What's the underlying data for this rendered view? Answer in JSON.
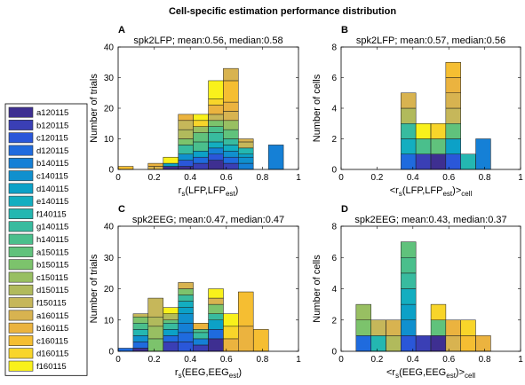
{
  "figure": {
    "title": "Cell-specific estimation performance distribution"
  },
  "legend": {
    "entries": [
      {
        "label": "a120115",
        "color": "#3E2F91"
      },
      {
        "label": "b120115",
        "color": "#3A3FB5"
      },
      {
        "label": "c120115",
        "color": "#2A57D9"
      },
      {
        "label": "d120115",
        "color": "#1F6BDE"
      },
      {
        "label": "b140115",
        "color": "#1580D6"
      },
      {
        "label": "c140115",
        "color": "#1090CE"
      },
      {
        "label": "d140115",
        "color": "#0CA1C7"
      },
      {
        "label": "e140115",
        "color": "#13AEC0"
      },
      {
        "label": "f140115",
        "color": "#24B7B1"
      },
      {
        "label": "g140115",
        "color": "#38BB9F"
      },
      {
        "label": "h140115",
        "color": "#4ABF8C"
      },
      {
        "label": "a150115",
        "color": "#60C27C"
      },
      {
        "label": "b150115",
        "color": "#7CC36C"
      },
      {
        "label": "c150115",
        "color": "#98BF62"
      },
      {
        "label": "d150115",
        "color": "#B1BA5C"
      },
      {
        "label": "f150115",
        "color": "#C6B75A"
      },
      {
        "label": "a160115",
        "color": "#D8B350"
      },
      {
        "label": "b160115",
        "color": "#EBB33F"
      },
      {
        "label": "c160115",
        "color": "#F5BE32"
      },
      {
        "label": "d160115",
        "color": "#F8D52A"
      },
      {
        "label": "f160115",
        "color": "#F9F11B"
      }
    ]
  },
  "chart_data": [
    {
      "type": "bar",
      "panel_letter": "A",
      "title": "spk2LFP; mean:0.56, median:0.58",
      "ylabel": "Number of trials",
      "xlabel": "r_s(LFP,LFP_est)",
      "xlim": [
        0,
        1
      ],
      "ylim": [
        0,
        40
      ],
      "xticks": [
        0,
        0.2,
        0.4,
        0.6,
        0.8,
        1
      ],
      "yticks": [
        0,
        10,
        20,
        30,
        40
      ],
      "bin_width": 0.0833,
      "bar_totals": [
        {
          "x": 0.042,
          "value": 1
        },
        {
          "x": 0.208,
          "value": 2
        },
        {
          "x": 0.292,
          "value": 4
        },
        {
          "x": 0.375,
          "value": 18
        },
        {
          "x": 0.458,
          "value": 18
        },
        {
          "x": 0.542,
          "value": 29
        },
        {
          "x": 0.625,
          "value": 33
        },
        {
          "x": 0.708,
          "value": 10
        },
        {
          "x": 0.875,
          "value": 8
        }
      ],
      "segments": [
        {
          "x": 0.042,
          "c": 18,
          "y0": 0,
          "y1": 1
        },
        {
          "x": 0.208,
          "c": 16,
          "y0": 0,
          "y1": 1
        },
        {
          "x": 0.208,
          "c": 17,
          "y0": 1,
          "y1": 2
        },
        {
          "x": 0.292,
          "c": 0,
          "y0": 0,
          "y1": 1
        },
        {
          "x": 0.292,
          "c": 6,
          "y0": 1,
          "y1": 2
        },
        {
          "x": 0.292,
          "c": 20,
          "y0": 2,
          "y1": 4
        },
        {
          "x": 0.375,
          "c": 0,
          "y0": 0,
          "y1": 1
        },
        {
          "x": 0.375,
          "c": 2,
          "y0": 1,
          "y1": 3
        },
        {
          "x": 0.375,
          "c": 5,
          "y0": 3,
          "y1": 5
        },
        {
          "x": 0.375,
          "c": 9,
          "y0": 5,
          "y1": 8
        },
        {
          "x": 0.375,
          "c": 12,
          "y0": 8,
          "y1": 10
        },
        {
          "x": 0.375,
          "c": 14,
          "y0": 10,
          "y1": 13
        },
        {
          "x": 0.375,
          "c": 15,
          "y0": 13,
          "y1": 16
        },
        {
          "x": 0.375,
          "c": 17,
          "y0": 16,
          "y1": 18
        },
        {
          "x": 0.458,
          "c": 1,
          "y0": 0,
          "y1": 2
        },
        {
          "x": 0.458,
          "c": 3,
          "y0": 2,
          "y1": 4
        },
        {
          "x": 0.458,
          "c": 6,
          "y0": 4,
          "y1": 6
        },
        {
          "x": 0.458,
          "c": 10,
          "y0": 6,
          "y1": 9
        },
        {
          "x": 0.458,
          "c": 11,
          "y0": 9,
          "y1": 12
        },
        {
          "x": 0.458,
          "c": 13,
          "y0": 12,
          "y1": 14
        },
        {
          "x": 0.458,
          "c": 19,
          "y0": 14,
          "y1": 16
        },
        {
          "x": 0.458,
          "c": 20,
          "y0": 16,
          "y1": 18
        },
        {
          "x": 0.542,
          "c": 0,
          "y0": 0,
          "y1": 3
        },
        {
          "x": 0.542,
          "c": 2,
          "y0": 3,
          "y1": 5
        },
        {
          "x": 0.542,
          "c": 4,
          "y0": 5,
          "y1": 7
        },
        {
          "x": 0.542,
          "c": 7,
          "y0": 7,
          "y1": 9
        },
        {
          "x": 0.542,
          "c": 9,
          "y0": 9,
          "y1": 12
        },
        {
          "x": 0.542,
          "c": 10,
          "y0": 12,
          "y1": 14
        },
        {
          "x": 0.542,
          "c": 12,
          "y0": 14,
          "y1": 16
        },
        {
          "x": 0.542,
          "c": 15,
          "y0": 16,
          "y1": 18
        },
        {
          "x": 0.542,
          "c": 17,
          "y0": 18,
          "y1": 21
        },
        {
          "x": 0.542,
          "c": 19,
          "y0": 21,
          "y1": 23
        },
        {
          "x": 0.542,
          "c": 20,
          "y0": 23,
          "y1": 29
        },
        {
          "x": 0.625,
          "c": 1,
          "y0": 0,
          "y1": 2
        },
        {
          "x": 0.625,
          "c": 3,
          "y0": 2,
          "y1": 4
        },
        {
          "x": 0.625,
          "c": 5,
          "y0": 4,
          "y1": 6
        },
        {
          "x": 0.625,
          "c": 7,
          "y0": 6,
          "y1": 8
        },
        {
          "x": 0.625,
          "c": 9,
          "y0": 8,
          "y1": 10
        },
        {
          "x": 0.625,
          "c": 11,
          "y0": 10,
          "y1": 13
        },
        {
          "x": 0.625,
          "c": 13,
          "y0": 13,
          "y1": 16
        },
        {
          "x": 0.625,
          "c": 16,
          "y0": 16,
          "y1": 19
        },
        {
          "x": 0.625,
          "c": 17,
          "y0": 19,
          "y1": 22
        },
        {
          "x": 0.625,
          "c": 18,
          "y0": 22,
          "y1": 29
        },
        {
          "x": 0.625,
          "c": 16,
          "y0": 29,
          "y1": 33
        },
        {
          "x": 0.708,
          "c": 4,
          "y0": 0,
          "y1": 2
        },
        {
          "x": 0.708,
          "c": 5,
          "y0": 2,
          "y1": 4
        },
        {
          "x": 0.708,
          "c": 6,
          "y0": 4,
          "y1": 5
        },
        {
          "x": 0.708,
          "c": 8,
          "y0": 5,
          "y1": 7
        },
        {
          "x": 0.708,
          "c": 15,
          "y0": 7,
          "y1": 9
        },
        {
          "x": 0.708,
          "c": 16,
          "y0": 9,
          "y1": 10
        },
        {
          "x": 0.875,
          "c": 4,
          "y0": 0,
          "y1": 8
        }
      ]
    },
    {
      "type": "bar",
      "panel_letter": "B",
      "title": "spk2LFP; mean:0.57, median:0.56",
      "ylabel": "Number of cells",
      "xlabel": "<r_s(LFP,LFP_est)>_cell",
      "xlim": [
        0,
        1
      ],
      "ylim": [
        0,
        8
      ],
      "xticks": [
        0,
        0.2,
        0.4,
        0.6,
        0.8,
        1
      ],
      "yticks": [
        0,
        2,
        4,
        6,
        8
      ],
      "bin_width": 0.0833,
      "bar_totals": [
        {
          "x": 0.375,
          "value": 5
        },
        {
          "x": 0.458,
          "value": 3
        },
        {
          "x": 0.542,
          "value": 3
        },
        {
          "x": 0.625,
          "value": 7
        },
        {
          "x": 0.708,
          "value": 1
        },
        {
          "x": 0.792,
          "value": 2
        }
      ],
      "segments": [
        {
          "x": 0.375,
          "c": 3,
          "y0": 0,
          "y1": 1
        },
        {
          "x": 0.375,
          "c": 7,
          "y0": 1,
          "y1": 2
        },
        {
          "x": 0.375,
          "c": 9,
          "y0": 2,
          "y1": 3
        },
        {
          "x": 0.375,
          "c": 14,
          "y0": 3,
          "y1": 4
        },
        {
          "x": 0.375,
          "c": 16,
          "y0": 4,
          "y1": 5
        },
        {
          "x": 0.458,
          "c": 1,
          "y0": 0,
          "y1": 1
        },
        {
          "x": 0.458,
          "c": 10,
          "y0": 1,
          "y1": 2
        },
        {
          "x": 0.458,
          "c": 20,
          "y0": 2,
          "y1": 3
        },
        {
          "x": 0.542,
          "c": 0,
          "y0": 0,
          "y1": 1
        },
        {
          "x": 0.542,
          "c": 11,
          "y0": 1,
          "y1": 2
        },
        {
          "x": 0.542,
          "c": 19,
          "y0": 2,
          "y1": 3
        },
        {
          "x": 0.625,
          "c": 2,
          "y0": 0,
          "y1": 1
        },
        {
          "x": 0.625,
          "c": 6,
          "y0": 1,
          "y1": 2
        },
        {
          "x": 0.625,
          "c": 11,
          "y0": 2,
          "y1": 3
        },
        {
          "x": 0.625,
          "c": 15,
          "y0": 3,
          "y1": 4
        },
        {
          "x": 0.625,
          "c": 16,
          "y0": 4,
          "y1": 5
        },
        {
          "x": 0.625,
          "c": 17,
          "y0": 5,
          "y1": 6
        },
        {
          "x": 0.625,
          "c": 18,
          "y0": 6,
          "y1": 7
        },
        {
          "x": 0.708,
          "c": 8,
          "y0": 0,
          "y1": 1
        },
        {
          "x": 0.792,
          "c": 4,
          "y0": 0,
          "y1": 2
        }
      ]
    },
    {
      "type": "bar",
      "panel_letter": "C",
      "title": "spk2EEG; mean:0.47, median:0.47",
      "ylabel": "Number of trials",
      "xlabel": "r_s(EEG,EEG_est)",
      "xlim": [
        0,
        1
      ],
      "ylim": [
        0,
        40
      ],
      "xticks": [
        0,
        0.2,
        0.4,
        0.6,
        0.8,
        1
      ],
      "yticks": [
        0,
        10,
        20,
        30,
        40
      ],
      "bin_width": 0.0833,
      "bar_totals": [
        {
          "x": 0.042,
          "value": 1
        },
        {
          "x": 0.125,
          "value": 12
        },
        {
          "x": 0.208,
          "value": 17
        },
        {
          "x": 0.292,
          "value": 14
        },
        {
          "x": 0.375,
          "value": 22
        },
        {
          "x": 0.458,
          "value": 9
        },
        {
          "x": 0.542,
          "value": 20
        },
        {
          "x": 0.625,
          "value": 12
        },
        {
          "x": 0.708,
          "value": 19
        },
        {
          "x": 0.792,
          "value": 7
        }
      ],
      "segments": [
        {
          "x": 0.042,
          "c": 3,
          "y0": 0,
          "y1": 1
        },
        {
          "x": 0.125,
          "c": 0,
          "y0": 0,
          "y1": 1
        },
        {
          "x": 0.125,
          "c": 3,
          "y0": 1,
          "y1": 3
        },
        {
          "x": 0.125,
          "c": 5,
          "y0": 3,
          "y1": 5
        },
        {
          "x": 0.125,
          "c": 8,
          "y0": 5,
          "y1": 7
        },
        {
          "x": 0.125,
          "c": 10,
          "y0": 7,
          "y1": 9
        },
        {
          "x": 0.125,
          "c": 12,
          "y0": 9,
          "y1": 11
        },
        {
          "x": 0.125,
          "c": 15,
          "y0": 11,
          "y1": 12
        },
        {
          "x": 0.208,
          "c": 12,
          "y0": 0,
          "y1": 4
        },
        {
          "x": 0.208,
          "c": 13,
          "y0": 4,
          "y1": 8
        },
        {
          "x": 0.208,
          "c": 14,
          "y0": 8,
          "y1": 11
        },
        {
          "x": 0.208,
          "c": 15,
          "y0": 11,
          "y1": 17
        },
        {
          "x": 0.292,
          "c": 1,
          "y0": 0,
          "y1": 3
        },
        {
          "x": 0.292,
          "c": 3,
          "y0": 3,
          "y1": 5
        },
        {
          "x": 0.292,
          "c": 6,
          "y0": 5,
          "y1": 7
        },
        {
          "x": 0.292,
          "c": 9,
          "y0": 7,
          "y1": 9
        },
        {
          "x": 0.292,
          "c": 11,
          "y0": 9,
          "y1": 10
        },
        {
          "x": 0.292,
          "c": 14,
          "y0": 10,
          "y1": 12
        },
        {
          "x": 0.292,
          "c": 20,
          "y0": 12,
          "y1": 14
        },
        {
          "x": 0.375,
          "c": 2,
          "y0": 0,
          "y1": 3
        },
        {
          "x": 0.375,
          "c": 3,
          "y0": 3,
          "y1": 6
        },
        {
          "x": 0.375,
          "c": 4,
          "y0": 6,
          "y1": 9
        },
        {
          "x": 0.375,
          "c": 5,
          "y0": 9,
          "y1": 12
        },
        {
          "x": 0.375,
          "c": 6,
          "y0": 12,
          "y1": 14
        },
        {
          "x": 0.375,
          "c": 7,
          "y0": 14,
          "y1": 16
        },
        {
          "x": 0.375,
          "c": 9,
          "y0": 16,
          "y1": 18
        },
        {
          "x": 0.375,
          "c": 12,
          "y0": 18,
          "y1": 20
        },
        {
          "x": 0.375,
          "c": 16,
          "y0": 20,
          "y1": 22
        },
        {
          "x": 0.458,
          "c": 1,
          "y0": 0,
          "y1": 2
        },
        {
          "x": 0.458,
          "c": 4,
          "y0": 2,
          "y1": 4
        },
        {
          "x": 0.458,
          "c": 9,
          "y0": 4,
          "y1": 6
        },
        {
          "x": 0.458,
          "c": 10,
          "y0": 6,
          "y1": 7
        },
        {
          "x": 0.458,
          "c": 17,
          "y0": 7,
          "y1": 9
        },
        {
          "x": 0.542,
          "c": 0,
          "y0": 0,
          "y1": 4
        },
        {
          "x": 0.542,
          "c": 3,
          "y0": 4,
          "y1": 7
        },
        {
          "x": 0.542,
          "c": 6,
          "y0": 7,
          "y1": 10
        },
        {
          "x": 0.542,
          "c": 9,
          "y0": 10,
          "y1": 12
        },
        {
          "x": 0.542,
          "c": 12,
          "y0": 12,
          "y1": 15
        },
        {
          "x": 0.542,
          "c": 16,
          "y0": 15,
          "y1": 17
        },
        {
          "x": 0.542,
          "c": 20,
          "y0": 17,
          "y1": 20
        },
        {
          "x": 0.625,
          "c": 17,
          "y0": 0,
          "y1": 4
        },
        {
          "x": 0.625,
          "c": 19,
          "y0": 4,
          "y1": 8
        },
        {
          "x": 0.625,
          "c": 20,
          "y0": 8,
          "y1": 12
        },
        {
          "x": 0.708,
          "c": 17,
          "y0": 0,
          "y1": 8
        },
        {
          "x": 0.708,
          "c": 18,
          "y0": 8,
          "y1": 19
        },
        {
          "x": 0.792,
          "c": 18,
          "y0": 0,
          "y1": 7
        }
      ]
    },
    {
      "type": "bar",
      "panel_letter": "D",
      "title": "spk2EEG; mean:0.43, median:0.37",
      "ylabel": "Number of cells",
      "xlabel": "<r_s(EEG,EEG_est)>_cell",
      "xlim": [
        0,
        1
      ],
      "ylim": [
        0,
        8
      ],
      "xticks": [
        0,
        0.2,
        0.4,
        0.6,
        0.8,
        1
      ],
      "yticks": [
        0,
        2,
        4,
        6,
        8
      ],
      "bin_width": 0.0833,
      "bar_totals": [
        {
          "x": 0.125,
          "value": 3
        },
        {
          "x": 0.208,
          "value": 2
        },
        {
          "x": 0.292,
          "value": 2
        },
        {
          "x": 0.375,
          "value": 7
        },
        {
          "x": 0.458,
          "value": 1
        },
        {
          "x": 0.542,
          "value": 3
        },
        {
          "x": 0.625,
          "value": 2
        },
        {
          "x": 0.708,
          "value": 2
        },
        {
          "x": 0.792,
          "value": 1
        }
      ],
      "segments": [
        {
          "x": 0.125,
          "c": 3,
          "y0": 0,
          "y1": 1
        },
        {
          "x": 0.125,
          "c": 12,
          "y0": 1,
          "y1": 2
        },
        {
          "x": 0.125,
          "c": 13,
          "y0": 2,
          "y1": 3
        },
        {
          "x": 0.208,
          "c": 8,
          "y0": 0,
          "y1": 1
        },
        {
          "x": 0.208,
          "c": 15,
          "y0": 1,
          "y1": 2
        },
        {
          "x": 0.292,
          "c": 14,
          "y0": 0,
          "y1": 1
        },
        {
          "x": 0.292,
          "c": 16,
          "y0": 1,
          "y1": 2
        },
        {
          "x": 0.375,
          "c": 2,
          "y0": 0,
          "y1": 1
        },
        {
          "x": 0.375,
          "c": 5,
          "y0": 1,
          "y1": 2
        },
        {
          "x": 0.375,
          "c": 6,
          "y0": 2,
          "y1": 3
        },
        {
          "x": 0.375,
          "c": 7,
          "y0": 3,
          "y1": 4
        },
        {
          "x": 0.375,
          "c": 9,
          "y0": 4,
          "y1": 5
        },
        {
          "x": 0.375,
          "c": 10,
          "y0": 5,
          "y1": 6
        },
        {
          "x": 0.375,
          "c": 11,
          "y0": 6,
          "y1": 7
        },
        {
          "x": 0.458,
          "c": 1,
          "y0": 0,
          "y1": 1
        },
        {
          "x": 0.542,
          "c": 0,
          "y0": 0,
          "y1": 1
        },
        {
          "x": 0.542,
          "c": 11,
          "y0": 1,
          "y1": 2
        },
        {
          "x": 0.542,
          "c": 19,
          "y0": 2,
          "y1": 3
        },
        {
          "x": 0.625,
          "c": 16,
          "y0": 0,
          "y1": 1
        },
        {
          "x": 0.625,
          "c": 17,
          "y0": 1,
          "y1": 2
        },
        {
          "x": 0.708,
          "c": 18,
          "y0": 0,
          "y1": 1
        },
        {
          "x": 0.708,
          "c": 19,
          "y0": 1,
          "y1": 2
        },
        {
          "x": 0.792,
          "c": 17,
          "y0": 0,
          "y1": 1
        }
      ]
    }
  ]
}
